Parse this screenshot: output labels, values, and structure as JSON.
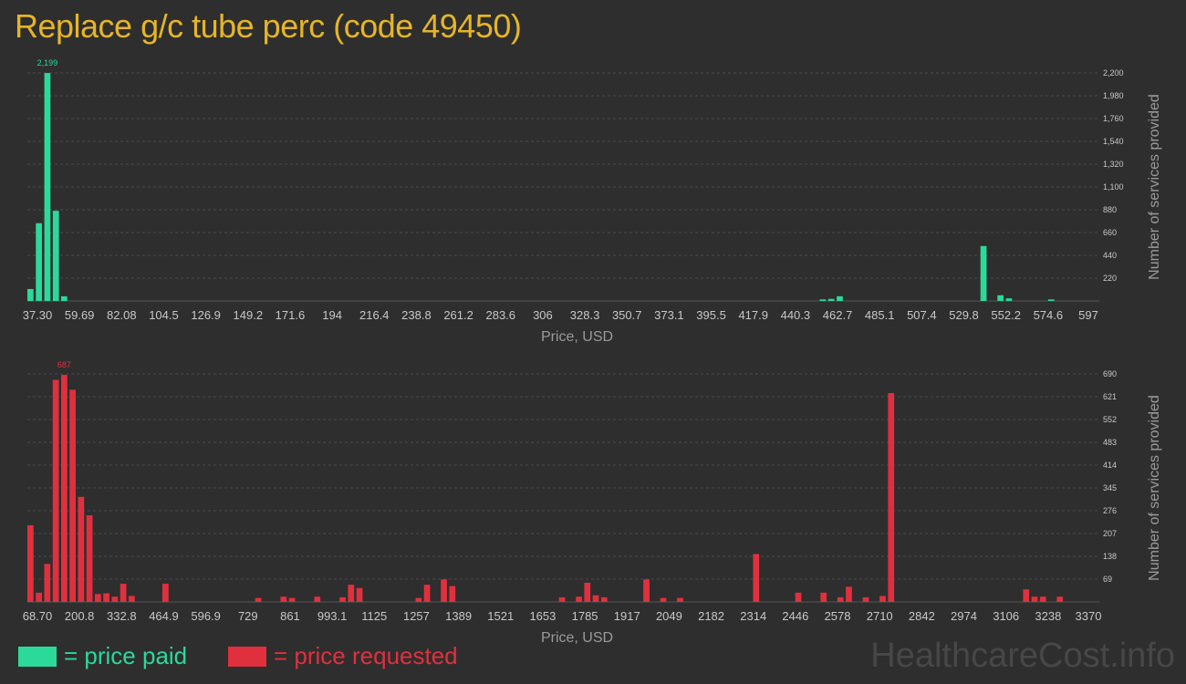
{
  "title": "Replace g/c tube perc (code 49450)",
  "legend": {
    "paid_label": "= price paid",
    "requested_label": "= price requested",
    "paid_color": "#2bd99a",
    "requested_color": "#e0303e"
  },
  "watermark": "HealthcareCost.info",
  "chart_data": [
    {
      "type": "bar",
      "name": "price paid",
      "xlabel": "Price, USD",
      "ylabel": "Number of services provided",
      "ylim": [
        0,
        2200
      ],
      "yticks": [
        "220",
        "440",
        "660",
        "880",
        "1,100",
        "1,320",
        "1,540",
        "1,760",
        "1,980",
        "2,200"
      ],
      "x_tick_labels": [
        "37.30",
        "59.69",
        "82.08",
        "104.5",
        "126.9",
        "149.2",
        "171.6",
        "194",
        "216.4",
        "238.8",
        "261.2",
        "283.6",
        "306",
        "328.3",
        "350.7",
        "373.1",
        "395.5",
        "417.9",
        "440.3",
        "462.7",
        "485.1",
        "507.4",
        "529.8",
        "552.2",
        "574.6",
        "597"
      ],
      "xrange": [
        37.3,
        597
      ],
      "peak_label": "2,199",
      "bars": [
        {
          "x": 37.3,
          "y": 115
        },
        {
          "x": 41.8,
          "y": 750
        },
        {
          "x": 46.3,
          "y": 2199
        },
        {
          "x": 50.8,
          "y": 870
        },
        {
          "x": 55.2,
          "y": 45
        },
        {
          "x": 457.8,
          "y": 15
        },
        {
          "x": 462.3,
          "y": 20
        },
        {
          "x": 466.8,
          "y": 45
        },
        {
          "x": 543.1,
          "y": 530
        },
        {
          "x": 552.1,
          "y": 55
        },
        {
          "x": 556.6,
          "y": 25
        },
        {
          "x": 579.0,
          "y": 15
        }
      ]
    },
    {
      "type": "bar",
      "name": "price requested",
      "xlabel": "Price, USD",
      "ylabel": "Number of services provided",
      "ylim": [
        0,
        690
      ],
      "yticks": [
        "69",
        "138",
        "207",
        "276",
        "345",
        "414",
        "483",
        "552",
        "621",
        "690"
      ],
      "x_tick_labels": [
        "68.70",
        "200.8",
        "332.8",
        "464.9",
        "596.9",
        "729",
        "861",
        "993.1",
        "1125",
        "1257",
        "1389",
        "1521",
        "1653",
        "1785",
        "1917",
        "2049",
        "2182",
        "2314",
        "2446",
        "2578",
        "2710",
        "2842",
        "2974",
        "3106",
        "3238",
        "3370"
      ],
      "xrange": [
        68.7,
        3370
      ],
      "peak_label": "687",
      "bars": [
        {
          "x": 68.7,
          "y": 232
        },
        {
          "x": 95.1,
          "y": 28
        },
        {
          "x": 121.5,
          "y": 115
        },
        {
          "x": 148.0,
          "y": 672
        },
        {
          "x": 174.4,
          "y": 687
        },
        {
          "x": 200.8,
          "y": 642
        },
        {
          "x": 227.2,
          "y": 318
        },
        {
          "x": 253.6,
          "y": 262
        },
        {
          "x": 280.0,
          "y": 24
        },
        {
          "x": 306.4,
          "y": 26
        },
        {
          "x": 332.8,
          "y": 16
        },
        {
          "x": 359.3,
          "y": 55
        },
        {
          "x": 385.7,
          "y": 18
        },
        {
          "x": 491.3,
          "y": 55
        },
        {
          "x": 781.9,
          "y": 12
        },
        {
          "x": 861.1,
          "y": 16
        },
        {
          "x": 887.5,
          "y": 12
        },
        {
          "x": 966.7,
          "y": 16
        },
        {
          "x": 1046.0,
          "y": 14
        },
        {
          "x": 1072.4,
          "y": 52
        },
        {
          "x": 1098.8,
          "y": 42
        },
        {
          "x": 1283.7,
          "y": 12
        },
        {
          "x": 1310.1,
          "y": 52
        },
        {
          "x": 1362.9,
          "y": 68
        },
        {
          "x": 1389.3,
          "y": 48
        },
        {
          "x": 1732.7,
          "y": 14
        },
        {
          "x": 1785.5,
          "y": 16
        },
        {
          "x": 1811.9,
          "y": 58
        },
        {
          "x": 1838.3,
          "y": 20
        },
        {
          "x": 1864.7,
          "y": 14
        },
        {
          "x": 1996.8,
          "y": 68
        },
        {
          "x": 2049.6,
          "y": 12
        },
        {
          "x": 2102.4,
          "y": 12
        },
        {
          "x": 2340.1,
          "y": 145
        },
        {
          "x": 2472.2,
          "y": 28
        },
        {
          "x": 2551.4,
          "y": 28
        },
        {
          "x": 2604.2,
          "y": 14
        },
        {
          "x": 2630.6,
          "y": 46
        },
        {
          "x": 2683.5,
          "y": 14
        },
        {
          "x": 2736.3,
          "y": 18
        },
        {
          "x": 2762.7,
          "y": 632
        },
        {
          "x": 3185.3,
          "y": 38
        },
        {
          "x": 3211.7,
          "y": 16
        },
        {
          "x": 3238.1,
          "y": 16
        },
        {
          "x": 3290.9,
          "y": 16
        }
      ]
    }
  ]
}
